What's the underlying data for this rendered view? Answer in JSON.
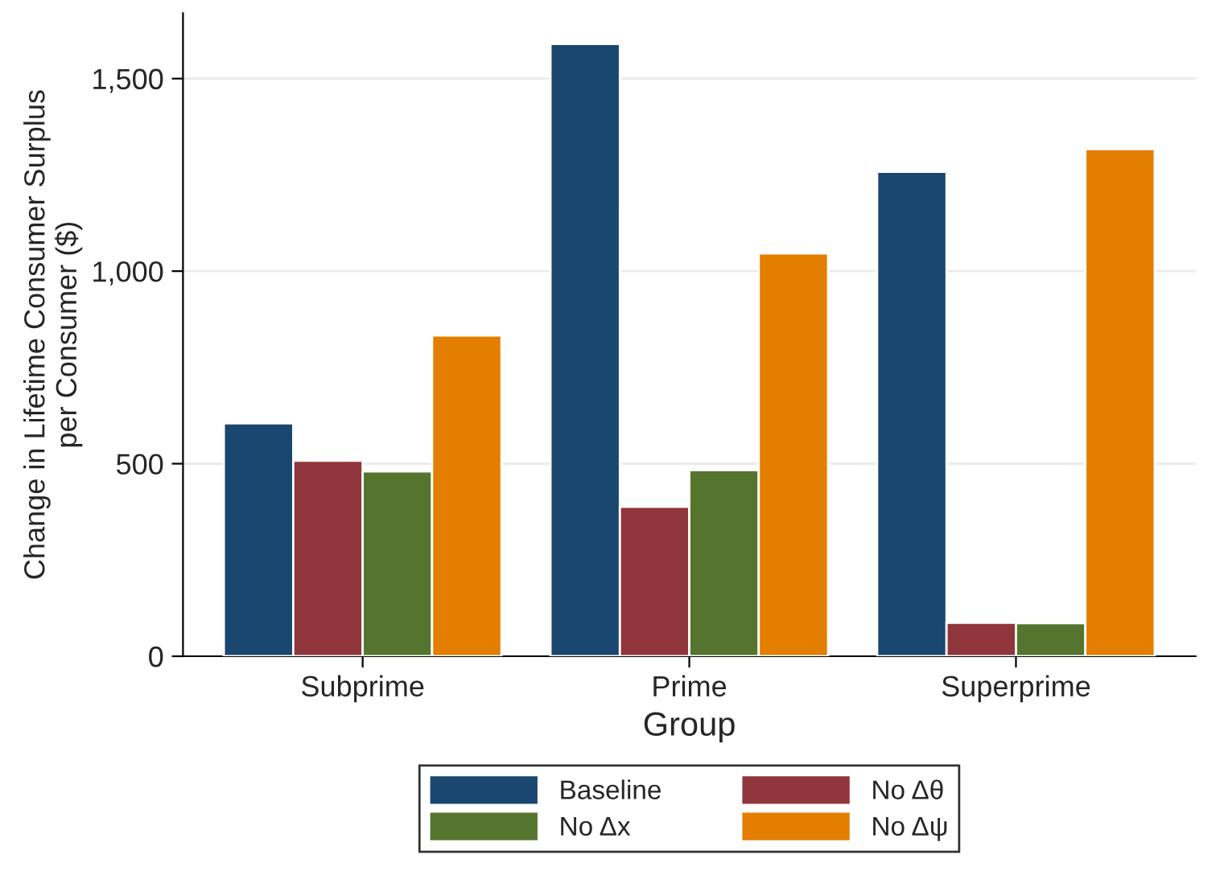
{
  "chart_data": {
    "type": "bar",
    "xlabel": "Group",
    "ylabel": "Change in Lifetime Consumer Surplus\nper Consumer ($)",
    "categories": [
      "Subprime",
      "Prime",
      "Superprime"
    ],
    "series": [
      {
        "name": "Baseline",
        "color": "#1a476f",
        "values": [
          605,
          1590,
          1258
        ]
      },
      {
        "name": "No Δθ",
        "color": "#90353b",
        "values": [
          508,
          388,
          87
        ]
      },
      {
        "name": "No Δx",
        "color": "#55752f",
        "values": [
          480,
          483,
          86
        ]
      },
      {
        "name": "No Δψ",
        "color": "#e37e00",
        "values": [
          833,
          1046,
          1317
        ]
      }
    ],
    "ylim": [
      0,
      1670
    ],
    "yticks": [
      0,
      {
        "value": 500,
        "label": "500"
      },
      {
        "value": 1000,
        "label": "1,000"
      },
      {
        "value": 1500,
        "label": "1,500"
      }
    ],
    "grid": "y",
    "legend": "bottom"
  }
}
